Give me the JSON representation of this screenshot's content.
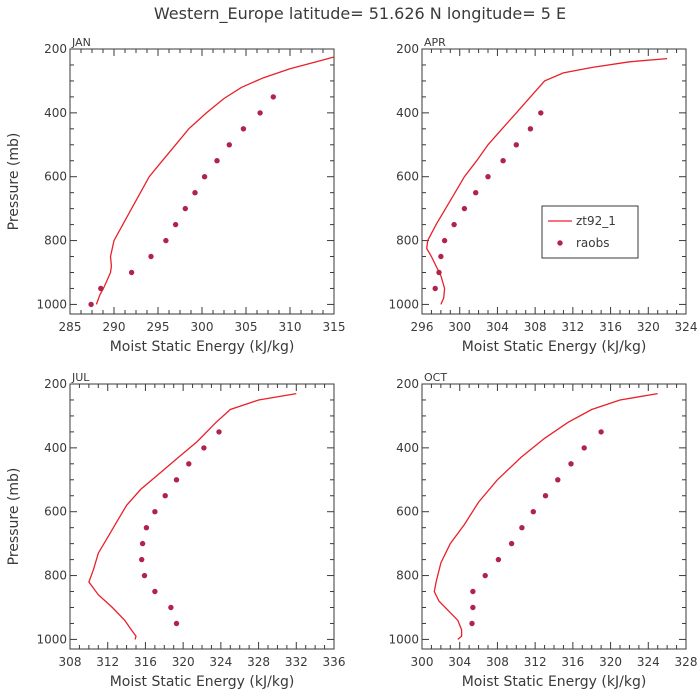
{
  "figure": {
    "title": "Western_Europe  latitude= 51.626 N longitude= 5 E"
  },
  "colors": {
    "model": "#e8202a",
    "obs": "#b0234a",
    "axes": "#3a3a3a"
  },
  "chart_data": [
    {
      "type": "line",
      "panel": "JAN",
      "xlabel": "Moist Static Energy (kJ/kg)",
      "ylabel": "Pressure (mb)",
      "xlim": [
        285,
        315
      ],
      "xticks": [
        285,
        290,
        295,
        300,
        305,
        310,
        315
      ],
      "ylim": [
        200,
        1030
      ],
      "y_inverted": true,
      "yticks": [
        200,
        400,
        600,
        800,
        1000
      ],
      "legend": false,
      "series": [
        {
          "name": "zt92_1",
          "style": "line",
          "points": [
            [
              315.0,
              225
            ],
            [
              313.0,
              240
            ],
            [
              310.0,
              262
            ],
            [
              307.0,
              290
            ],
            [
              304.5,
              320
            ],
            [
              302.5,
              355
            ],
            [
              300.5,
              400
            ],
            [
              298.5,
              450
            ],
            [
              297.0,
              500
            ],
            [
              295.5,
              550
            ],
            [
              294.0,
              600
            ],
            [
              293.0,
              650
            ],
            [
              292.0,
              700
            ],
            [
              291.0,
              750
            ],
            [
              290.0,
              800
            ],
            [
              289.6,
              850
            ],
            [
              289.7,
              880
            ],
            [
              289.6,
              900
            ],
            [
              289.2,
              925
            ],
            [
              288.8,
              950
            ],
            [
              288.4,
              970
            ],
            [
              288.0,
              1000
            ]
          ]
        },
        {
          "name": "raobs",
          "style": "markers",
          "points": [
            [
              308.1,
              350
            ],
            [
              306.6,
              400
            ],
            [
              304.7,
              450
            ],
            [
              303.1,
              500
            ],
            [
              301.7,
              550
            ],
            [
              300.3,
              600
            ],
            [
              299.2,
              650
            ],
            [
              298.1,
              700
            ],
            [
              297.0,
              750
            ],
            [
              295.9,
              800
            ],
            [
              294.2,
              850
            ],
            [
              292.0,
              900
            ],
            [
              288.5,
              950
            ],
            [
              287.4,
              1000
            ]
          ]
        }
      ]
    },
    {
      "type": "line",
      "panel": "APR",
      "xlabel": "Moist Static Energy (kJ/kg)",
      "ylabel": "",
      "xlim": [
        296,
        324
      ],
      "xticks": [
        296,
        300,
        304,
        308,
        312,
        316,
        320,
        324
      ],
      "ylim": [
        200,
        1030
      ],
      "y_inverted": true,
      "yticks": [
        200,
        400,
        600,
        800,
        1000
      ],
      "legend": true,
      "legend_position": "right",
      "series": [
        {
          "name": "zt92_1",
          "style": "line",
          "points": [
            [
              322.0,
              230
            ],
            [
              318.0,
              240
            ],
            [
              314.0,
              258
            ],
            [
              311.0,
              275
            ],
            [
              309.0,
              300
            ],
            [
              307.5,
              350
            ],
            [
              306.0,
              400
            ],
            [
              304.5,
              450
            ],
            [
              303.0,
              500
            ],
            [
              301.8,
              550
            ],
            [
              300.5,
              600
            ],
            [
              299.5,
              650
            ],
            [
              298.5,
              700
            ],
            [
              297.5,
              750
            ],
            [
              296.6,
              800
            ],
            [
              296.5,
              825
            ],
            [
              297.0,
              850
            ],
            [
              297.5,
              880
            ],
            [
              298.0,
              910
            ],
            [
              298.4,
              950
            ],
            [
              298.3,
              980
            ],
            [
              298.0,
              1000
            ]
          ]
        },
        {
          "name": "raobs",
          "style": "markers",
          "points": [
            [
              308.6,
              400
            ],
            [
              307.5,
              450
            ],
            [
              306.0,
              500
            ],
            [
              304.6,
              550
            ],
            [
              303.0,
              600
            ],
            [
              301.7,
              650
            ],
            [
              300.5,
              700
            ],
            [
              299.4,
              750
            ],
            [
              298.4,
              800
            ],
            [
              298.0,
              850
            ],
            [
              297.8,
              900
            ],
            [
              297.4,
              950
            ]
          ]
        }
      ]
    },
    {
      "type": "line",
      "panel": "JUL",
      "xlabel": "Moist Static Energy (kJ/kg)",
      "ylabel": "Pressure (mb)",
      "xlim": [
        308,
        336
      ],
      "xticks": [
        308,
        312,
        316,
        320,
        324,
        328,
        332,
        336
      ],
      "ylim": [
        200,
        1030
      ],
      "y_inverted": true,
      "yticks": [
        200,
        400,
        600,
        800,
        1000
      ],
      "legend": false,
      "series": [
        {
          "name": "zt92_1",
          "style": "line",
          "points": [
            [
              332.0,
              230
            ],
            [
              328.0,
              250
            ],
            [
              325.0,
              280
            ],
            [
              323.5,
              320
            ],
            [
              321.5,
              380
            ],
            [
              319.5,
              430
            ],
            [
              317.5,
              480
            ],
            [
              315.5,
              530
            ],
            [
              314.0,
              580
            ],
            [
              313.0,
              630
            ],
            [
              312.0,
              680
            ],
            [
              311.0,
              730
            ],
            [
              310.5,
              780
            ],
            [
              310.0,
              820
            ],
            [
              311.0,
              860
            ],
            [
              312.5,
              900
            ],
            [
              313.8,
              940
            ],
            [
              314.5,
              970
            ],
            [
              315.0,
              990
            ],
            [
              314.9,
              1000
            ]
          ]
        },
        {
          "name": "raobs",
          "style": "markers",
          "points": [
            [
              323.8,
              350
            ],
            [
              322.2,
              400
            ],
            [
              320.6,
              450
            ],
            [
              319.3,
              500
            ],
            [
              318.1,
              550
            ],
            [
              317.0,
              600
            ],
            [
              316.1,
              650
            ],
            [
              315.7,
              700
            ],
            [
              315.6,
              750
            ],
            [
              315.9,
              800
            ],
            [
              317.0,
              850
            ],
            [
              318.7,
              900
            ],
            [
              319.3,
              950
            ]
          ]
        }
      ]
    },
    {
      "type": "line",
      "panel": "OCT",
      "xlabel": "Moist Static Energy (kJ/kg)",
      "ylabel": "",
      "xlim": [
        300,
        328
      ],
      "xticks": [
        300,
        304,
        308,
        312,
        316,
        320,
        324,
        328
      ],
      "ylim": [
        200,
        1030
      ],
      "y_inverted": true,
      "yticks": [
        200,
        400,
        600,
        800,
        1000
      ],
      "legend": false,
      "series": [
        {
          "name": "zt92_1",
          "style": "line",
          "points": [
            [
              325.0,
              230
            ],
            [
              321.0,
              250
            ],
            [
              318.0,
              280
            ],
            [
              315.5,
              320
            ],
            [
              313.0,
              370
            ],
            [
              310.5,
              430
            ],
            [
              308.0,
              500
            ],
            [
              306.0,
              570
            ],
            [
              304.5,
              640
            ],
            [
              303.0,
              700
            ],
            [
              302.0,
              760
            ],
            [
              301.5,
              820
            ],
            [
              301.3,
              850
            ],
            [
              301.8,
              880
            ],
            [
              302.8,
              910
            ],
            [
              303.8,
              940
            ],
            [
              304.2,
              970
            ],
            [
              304.2,
              990
            ],
            [
              303.8,
              1000
            ]
          ]
        },
        {
          "name": "raobs",
          "style": "markers",
          "points": [
            [
              319.0,
              350
            ],
            [
              317.2,
              400
            ],
            [
              315.8,
              450
            ],
            [
              314.4,
              500
            ],
            [
              313.1,
              550
            ],
            [
              311.8,
              600
            ],
            [
              310.6,
              650
            ],
            [
              309.5,
              700
            ],
            [
              308.1,
              750
            ],
            [
              306.7,
              800
            ],
            [
              305.4,
              850
            ],
            [
              305.4,
              900
            ],
            [
              305.3,
              950
            ]
          ]
        }
      ]
    }
  ]
}
